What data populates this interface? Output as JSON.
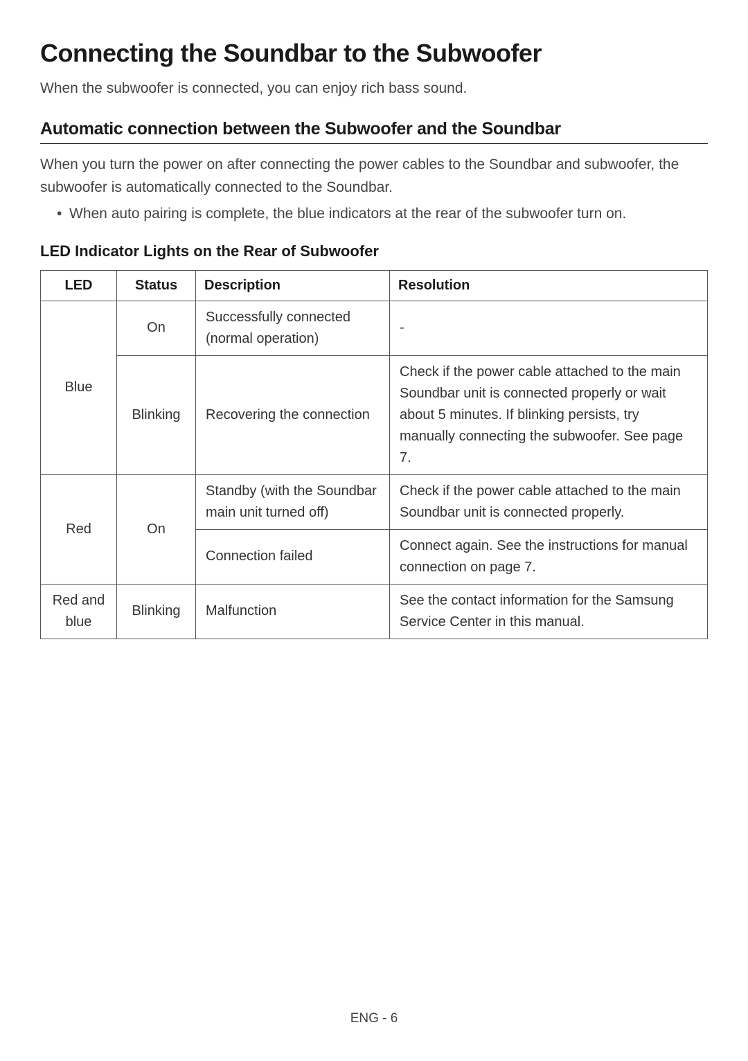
{
  "heading": "Connecting the Soundbar to the Subwoofer",
  "intro": "When the subwoofer is connected, you can enjoy rich bass sound.",
  "subheading": "Automatic connection between the Subwoofer and the Soundbar",
  "description": "When you turn the power on after connecting the power cables to the Soundbar and subwoofer, the subwoofer is automatically connected to the Soundbar.",
  "bullet": "When auto pairing is complete, the blue indicators at the rear of the subwoofer turn on.",
  "tableTitle": "LED Indicator Lights on the Rear of Subwoofer",
  "table": {
    "headers": {
      "led": "LED",
      "status": "Status",
      "description": "Description",
      "resolution": "Resolution"
    },
    "rows": {
      "blue_on": {
        "led": "Blue",
        "status": "On",
        "description": "Successfully connected (normal operation)",
        "resolution": "-"
      },
      "blue_blinking": {
        "status": "Blinking",
        "description": "Recovering the connection",
        "resolution": "Check if the power cable attached to the main Soundbar unit is connected properly or wait about 5 minutes. If blinking persists, try manually connecting the subwoofer. See page 7."
      },
      "red_on_standby": {
        "led": "Red",
        "status": "On",
        "description": "Standby (with the Soundbar main unit turned off)",
        "resolution": "Check if the power cable attached to the main Soundbar unit is connected properly."
      },
      "red_on_failed": {
        "description": "Connection failed",
        "resolution": "Connect again. See the instructions for manual connection on page 7."
      },
      "redblue_blinking": {
        "led": "Red and blue",
        "status": "Blinking",
        "description": "Malfunction",
        "resolution": "See the contact information for the Samsung Service Center in this manual."
      }
    }
  },
  "footer": "ENG - 6",
  "styles": {
    "background": "#ffffff",
    "text_primary": "#1a1a1a",
    "text_secondary": "#444444",
    "border_color": "#555555",
    "heading_fontsize": 36,
    "subheading_fontsize": 25,
    "body_fontsize": 21,
    "table_fontsize": 20
  }
}
